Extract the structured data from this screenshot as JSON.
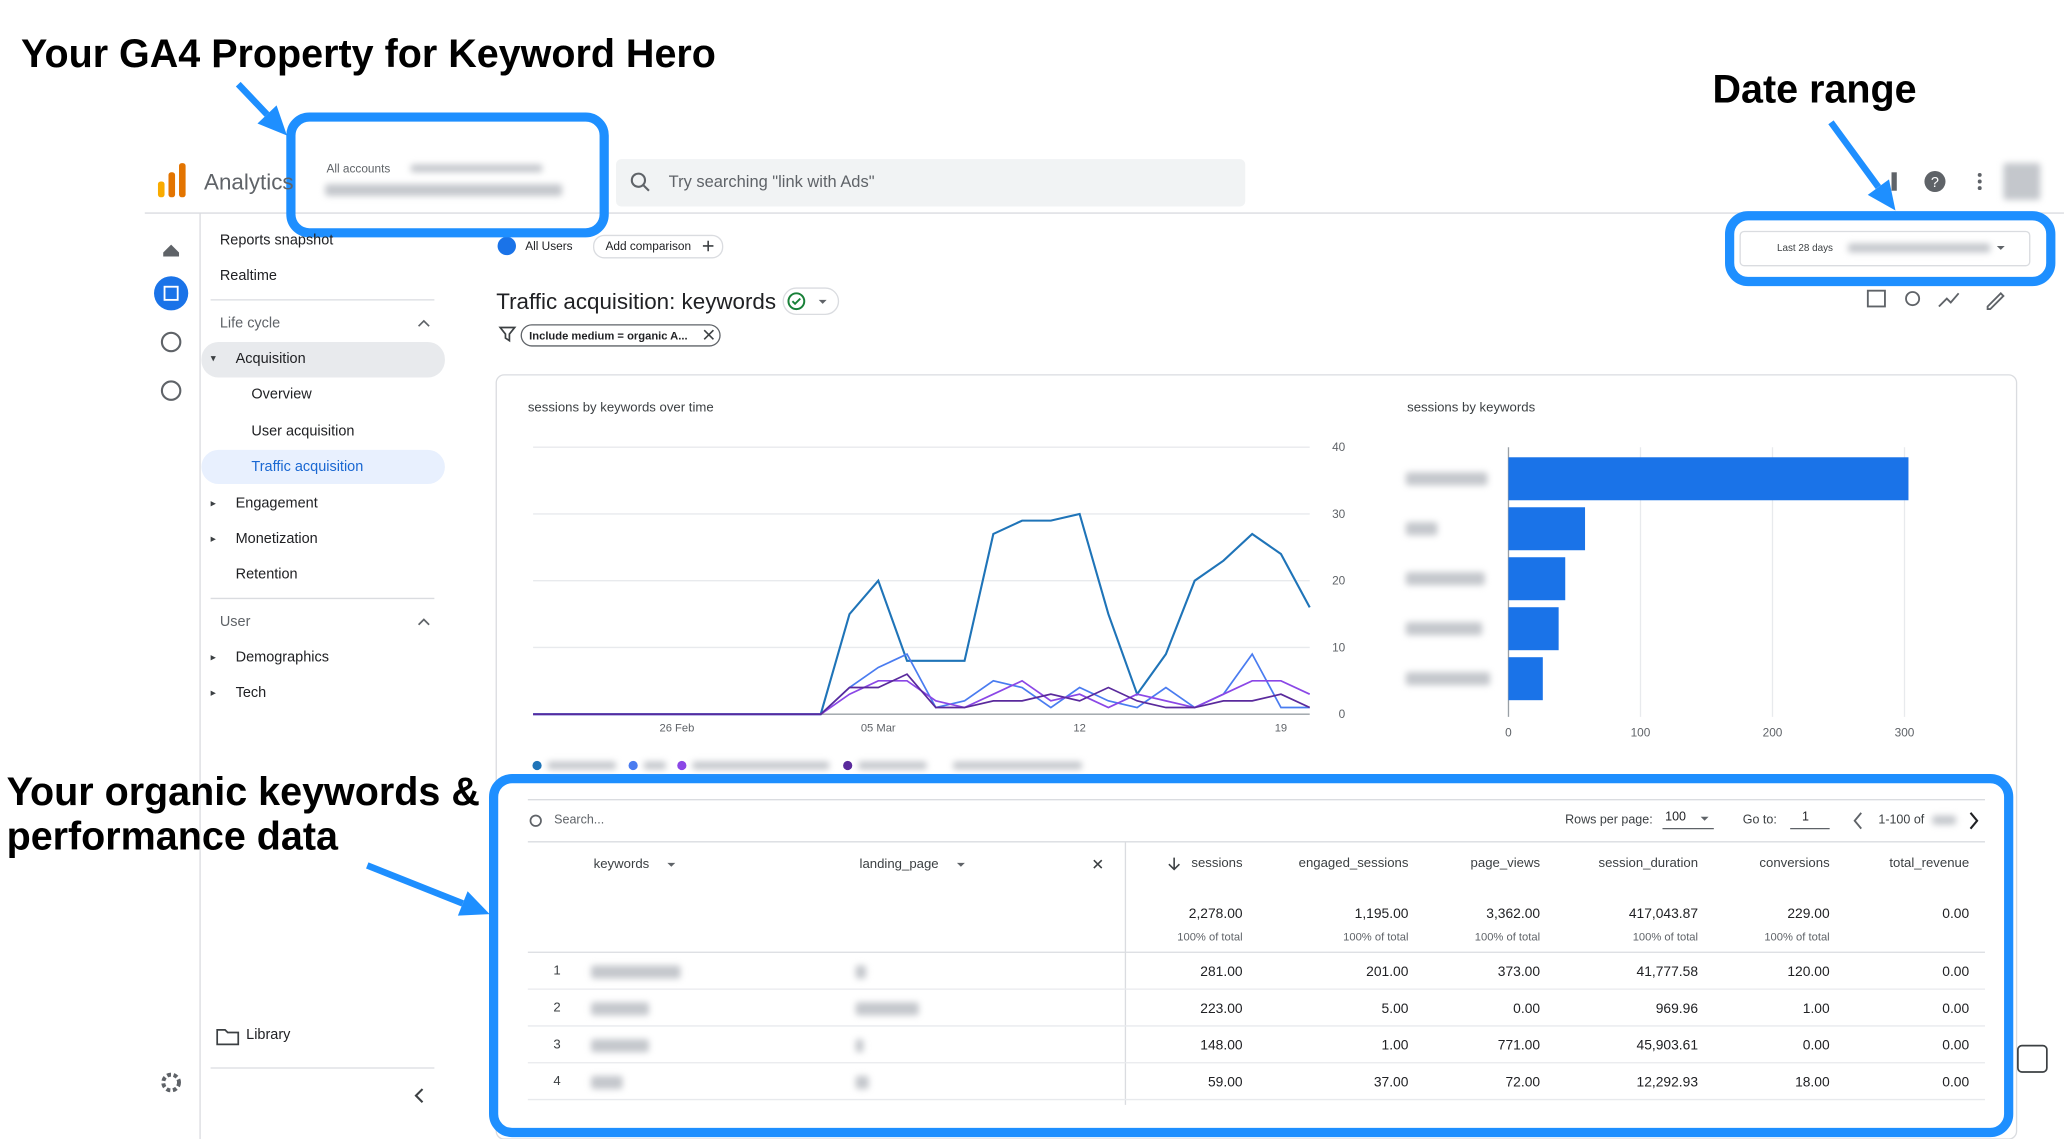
{
  "annotations": {
    "property": "Your GA4 Property for Keyword Hero",
    "date_range": "Date range",
    "keywords": "Your organic keywords & performance data"
  },
  "header": {
    "product": "Analytics",
    "breadcrumb": "All accounts",
    "search": "Try searching \"link with Ads\""
  },
  "nav": {
    "items": [
      "Reports snapshot",
      "Realtime",
      "Life cycle",
      "Acquisition",
      "Overview",
      "User acquisition",
      "Traffic acquisition",
      "Engagement",
      "Monetization",
      "Retention",
      "User",
      "Demographics",
      "Tech",
      "Library"
    ]
  },
  "report": {
    "segment": "All Users",
    "add_comparison": "Add comparison",
    "date_label": "Last 28 days",
    "title": "Traffic acquisition: keywords",
    "filter": "Include medium = organic A..."
  },
  "line_chart": {
    "type": "line",
    "title": "sessions by keywords over time",
    "categories": [
      null,
      null,
      null,
      null,
      null,
      "26 Feb",
      null,
      null,
      null,
      null,
      null,
      null,
      "05 Mar",
      null,
      null,
      null,
      null,
      null,
      null,
      "12",
      null,
      null,
      null,
      null,
      null,
      null,
      "19",
      null
    ],
    "ylim": [
      0,
      40
    ],
    "yticks": [
      0,
      10,
      20,
      30,
      40
    ],
    "grid": true,
    "series": [
      {
        "color": "#1f74b8",
        "values": [
          0,
          0,
          0,
          0,
          0,
          0,
          0,
          0,
          0,
          0,
          0,
          15,
          20,
          8,
          8,
          8,
          27,
          29,
          29,
          30,
          15,
          3,
          9,
          20,
          23,
          27,
          24,
          16
        ]
      },
      {
        "color": "#4a7cf0",
        "values": [
          0,
          0,
          0,
          0,
          0,
          0,
          0,
          0,
          0,
          0,
          0,
          4,
          7,
          9,
          1,
          2,
          5,
          4,
          1,
          4,
          2,
          1,
          4,
          1,
          3,
          9,
          1,
          1
        ]
      },
      {
        "color": "#8b47e6",
        "values": [
          0,
          0,
          0,
          0,
          0,
          0,
          0,
          0,
          0,
          0,
          0,
          3,
          5,
          5,
          2,
          1,
          3,
          5,
          2,
          3,
          1,
          3,
          2,
          1,
          3,
          5,
          5,
          3
        ]
      },
      {
        "color": "#5a2a9c",
        "values": [
          0,
          0,
          0,
          0,
          0,
          0,
          0,
          0,
          0,
          0,
          0,
          4,
          4,
          6,
          1,
          1,
          2,
          2,
          3,
          2,
          4,
          2,
          1,
          1,
          2,
          2,
          3,
          1
        ]
      }
    ]
  },
  "bar_chart": {
    "type": "bar",
    "title": "sessions by keywords",
    "categories": [
      null,
      null,
      null,
      null,
      null
    ],
    "values": [
      303,
      58,
      43,
      38,
      26
    ],
    "color": "#1a73e8",
    "xlim": [
      0,
      350
    ],
    "xticks": [
      0,
      100,
      200,
      300
    ],
    "grid": true
  },
  "table": {
    "search": "Search...",
    "rows_per_page": "Rows per page:",
    "rows_value": "100",
    "go_to": "Go to:",
    "page": "1",
    "range": "1-100 of",
    "columns": [
      "keywords",
      "landing_page",
      "sessions",
      "engaged_sessions",
      "page_views",
      "session_duration",
      "conversions",
      "total_revenue"
    ],
    "totals": [
      "2,278.00",
      "1,195.00",
      "3,362.00",
      "417,043.87",
      "229.00",
      "0.00"
    ],
    "total_note": "100% of total",
    "rows": [
      [
        "1",
        "281.00",
        "201.00",
        "373.00",
        "41,777.58",
        "120.00",
        "0.00"
      ],
      [
        "2",
        "223.00",
        "5.00",
        "0.00",
        "969.96",
        "1.00",
        "0.00"
      ],
      [
        "3",
        "148.00",
        "1.00",
        "771.00",
        "45,903.61",
        "0.00",
        "0.00"
      ],
      [
        "4",
        "59.00",
        "37.00",
        "72.00",
        "12,292.93",
        "18.00",
        "0.00"
      ]
    ]
  }
}
